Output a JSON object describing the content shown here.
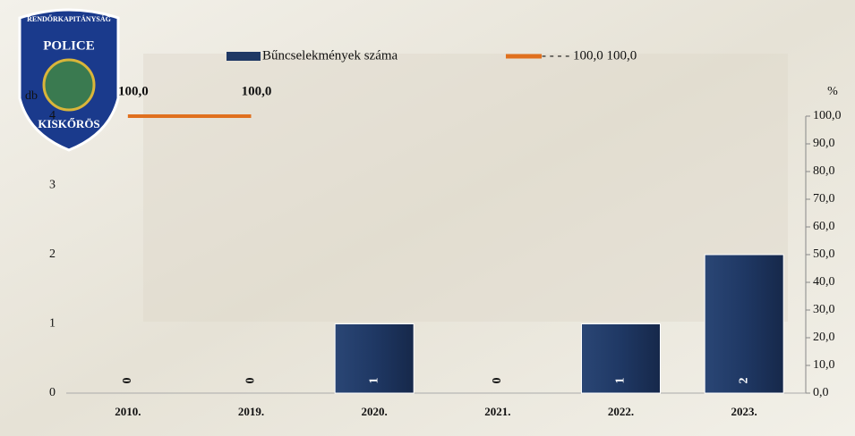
{
  "logo": {
    "top": "RENDŐRKAPITÁNYSÁG",
    "middle": "POLICE",
    "bottom": "KISKŐRÖS"
  },
  "chart_data": {
    "type": "bar",
    "categories": [
      "2010.",
      "2019.",
      "2020.",
      "2021.",
      "2022.",
      "2023."
    ],
    "series": [
      {
        "name": "Bűncselekmények száma",
        "color": "#1f3864",
        "values": [
          0,
          0,
          1,
          0,
          1,
          2
        ],
        "value_labels": [
          "0",
          "0",
          "1",
          "0",
          "1",
          "2"
        ]
      },
      {
        "name": "- - - - 100,0 100,0",
        "color": "#e0701e",
        "type": "line",
        "axis": "y2",
        "values": [
          100,
          100,
          null,
          null,
          null,
          null
        ],
        "value_labels": [
          "100,0",
          "100,0",
          null,
          null,
          null,
          null
        ]
      }
    ],
    "ylabel": "db",
    "y2label": "%",
    "ylim": [
      0,
      4
    ],
    "yticks": [
      0,
      1,
      2,
      3,
      4
    ],
    "y2lim": [
      0,
      100
    ],
    "y2ticks": [
      {
        "value": 0,
        "label": "0,0"
      },
      {
        "value": 10,
        "label": "10,0"
      },
      {
        "value": 20,
        "label": "20,0"
      },
      {
        "value": 30,
        "label": "30,0"
      },
      {
        "value": 40,
        "label": "40,0"
      },
      {
        "value": 50,
        "label": "50,0"
      },
      {
        "value": 60,
        "label": "60,0"
      },
      {
        "value": 70,
        "label": "70,0"
      },
      {
        "value": 80,
        "label": "80,0"
      },
      {
        "value": 90,
        "label": "90,0"
      },
      {
        "value": 100,
        "label": "100,0"
      }
    ]
  }
}
